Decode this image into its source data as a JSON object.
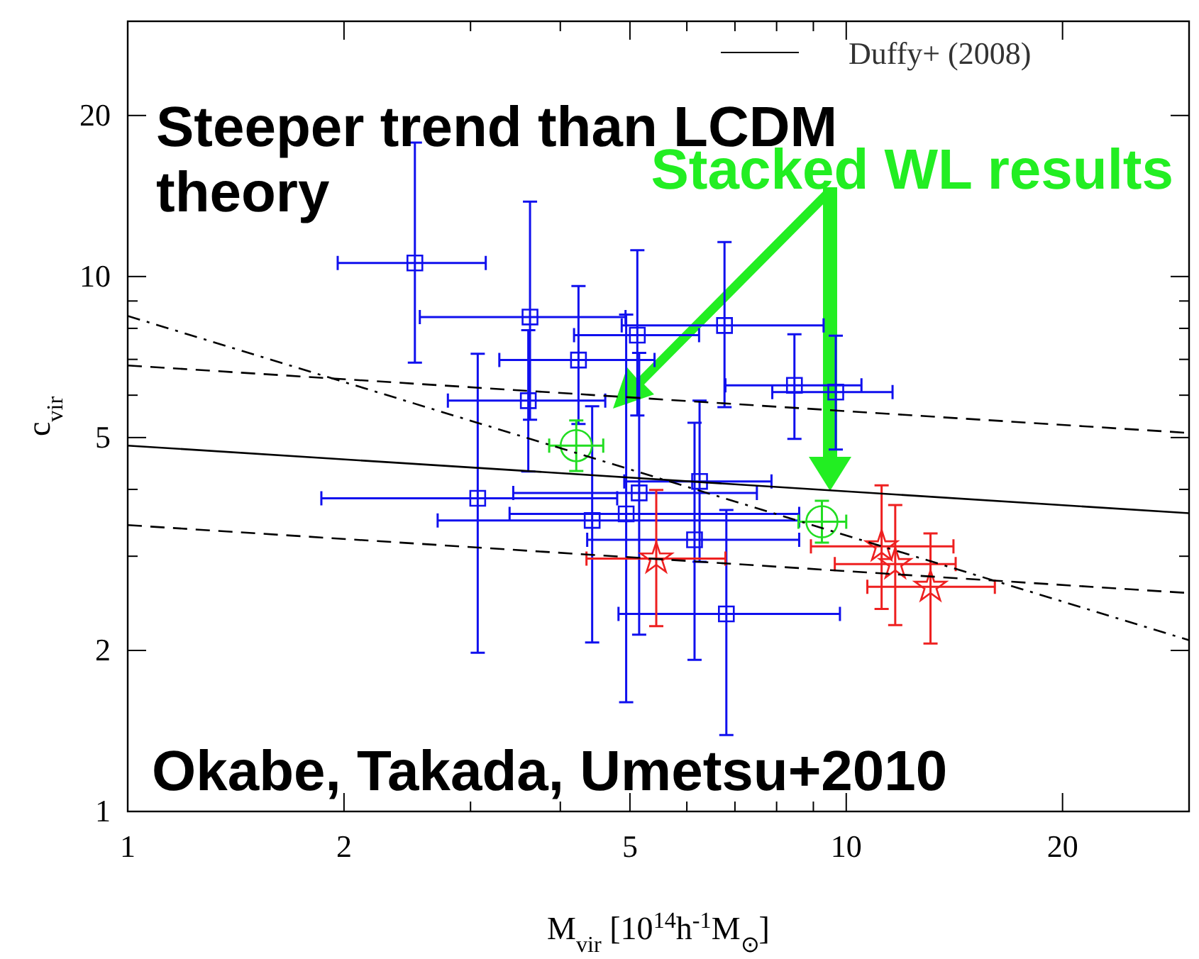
{
  "chart_data": {
    "type": "scatter",
    "xlabel": "M$_{vir}$ [10$^{14}$h$^{-1}$M$_{⊙}$]",
    "ylabel": "c$_{vir}$",
    "annotations": [
      "Steeper trend than LCDM theory",
      "Stacked WL results",
      "Okabe, Takada, Umetsu+2010"
    ],
    "log": "xy",
    "xlim": [
      1,
      30
    ],
    "ylim": [
      1,
      30
    ],
    "xticks": [
      1,
      2,
      {
        "value": 3,
        "label": null
      },
      {
        "value": 4,
        "label": null
      },
      5,
      {
        "value": 6,
        "label": null
      },
      {
        "value": 7,
        "label": null
      },
      {
        "value": 8,
        "label": null
      },
      {
        "value": 9,
        "label": null
      },
      10,
      20,
      {
        "value": 30,
        "label": null
      }
    ],
    "yticks": [
      1,
      2,
      {
        "value": 3,
        "label": null
      },
      {
        "value": 4,
        "label": null
      },
      5,
      {
        "value": 6,
        "label": null
      },
      {
        "value": 7,
        "label": null
      },
      {
        "value": 8,
        "label": null
      },
      {
        "value": 9,
        "label": null
      },
      10,
      20,
      {
        "value": 30,
        "label": null
      }
    ],
    "grid": false,
    "legend": "top right",
    "series": [
      {
        "marker": "square",
        "color": "#1010ee",
        "x": [
          2.51,
          3.63,
          5.12,
          6.77,
          4.24,
          3.61,
          3.07,
          5.15,
          6.25,
          4.43,
          4.94,
          6.15,
          6.81,
          8.47,
          9.67
        ],
        "values": [
          10.6,
          8.4,
          7.77,
          8.1,
          6.98,
          5.86,
          3.85,
          3.94,
          4.14,
          3.5,
          3.6,
          3.22,
          2.34,
          6.26,
          6.08
        ],
        "xerrors": [
          [
            1.96,
            3.15
          ],
          [
            2.55,
            4.93
          ],
          [
            4.18,
            6.24
          ],
          [
            4.87,
            9.3
          ],
          [
            3.29,
            5.41
          ],
          [
            2.79,
            4.62
          ],
          [
            1.86,
            4.8
          ],
          [
            3.44,
            7.51
          ],
          [
            4.91,
            7.87
          ],
          [
            2.7,
            8.6
          ],
          [
            3.4,
            8.6
          ],
          [
            4.36,
            8.6
          ],
          [
            4.82,
            9.8
          ],
          [
            6.79,
            10.5
          ],
          [
            7.89,
            11.6
          ]
        ],
        "errors": [
          [
            6.9,
            17.8
          ],
          [
            5.4,
            13.8
          ],
          [
            5.5,
            11.2
          ],
          [
            5.7,
            11.6
          ],
          [
            5.3,
            9.6
          ],
          [
            4.32,
            7.94
          ],
          [
            1.98,
            7.17
          ],
          [
            2.14,
            7.2
          ],
          [
            2.93,
            5.86
          ],
          [
            2.07,
            5.72
          ],
          [
            1.6,
            8.49
          ],
          [
            1.92,
            5.33
          ],
          [
            1.39,
            3.66
          ],
          [
            4.97,
            7.8
          ],
          [
            4.75,
            7.75
          ]
        ]
      },
      {
        "marker": "star",
        "color": "#ee2020",
        "x": [
          5.44,
          11.2,
          11.7,
          13.1
        ],
        "values": [
          2.97,
          3.13,
          2.9,
          2.63
        ],
        "xerrors": [
          [
            4.35,
            6.79
          ],
          [
            8.93,
            14.1
          ],
          [
            9.64,
            14.2
          ],
          [
            10.7,
            16.1
          ]
        ],
        "errors": [
          [
            2.22,
            3.99
          ],
          [
            2.39,
            4.07
          ],
          [
            2.23,
            3.74
          ],
          [
            2.06,
            3.31
          ]
        ]
      },
      {
        "marker": "circle",
        "color": "#22dd22",
        "x": [
          4.21,
          9.25
        ],
        "values": [
          4.83,
          3.48
        ],
        "xerrors": [
          [
            3.86,
            4.59
          ],
          [
            8.58,
            10
          ]
        ],
        "errors": [
          [
            4.33,
            5.38
          ],
          [
            3.18,
            3.81
          ]
        ]
      },
      {
        "type": "line",
        "name": "Duffy+ (2008)",
        "color": "#000000",
        "line_style": "solid",
        "x": [
          1,
          30
        ],
        "values": [
          4.83,
          3.61
        ]
      },
      {
        "type": "line",
        "color": "#000000",
        "line_style": "dashed",
        "x": [
          1,
          30
        ],
        "values": [
          6.82,
          5.1
        ]
      },
      {
        "type": "line",
        "color": "#000000",
        "line_style": "dashed",
        "x": [
          1,
          30
        ],
        "values": [
          3.43,
          2.56
        ]
      },
      {
        "type": "line",
        "color": "#000000",
        "line_style": "dashdot",
        "x": [
          1,
          30
        ],
        "values": [
          8.44,
          2.09
        ]
      }
    ]
  }
}
